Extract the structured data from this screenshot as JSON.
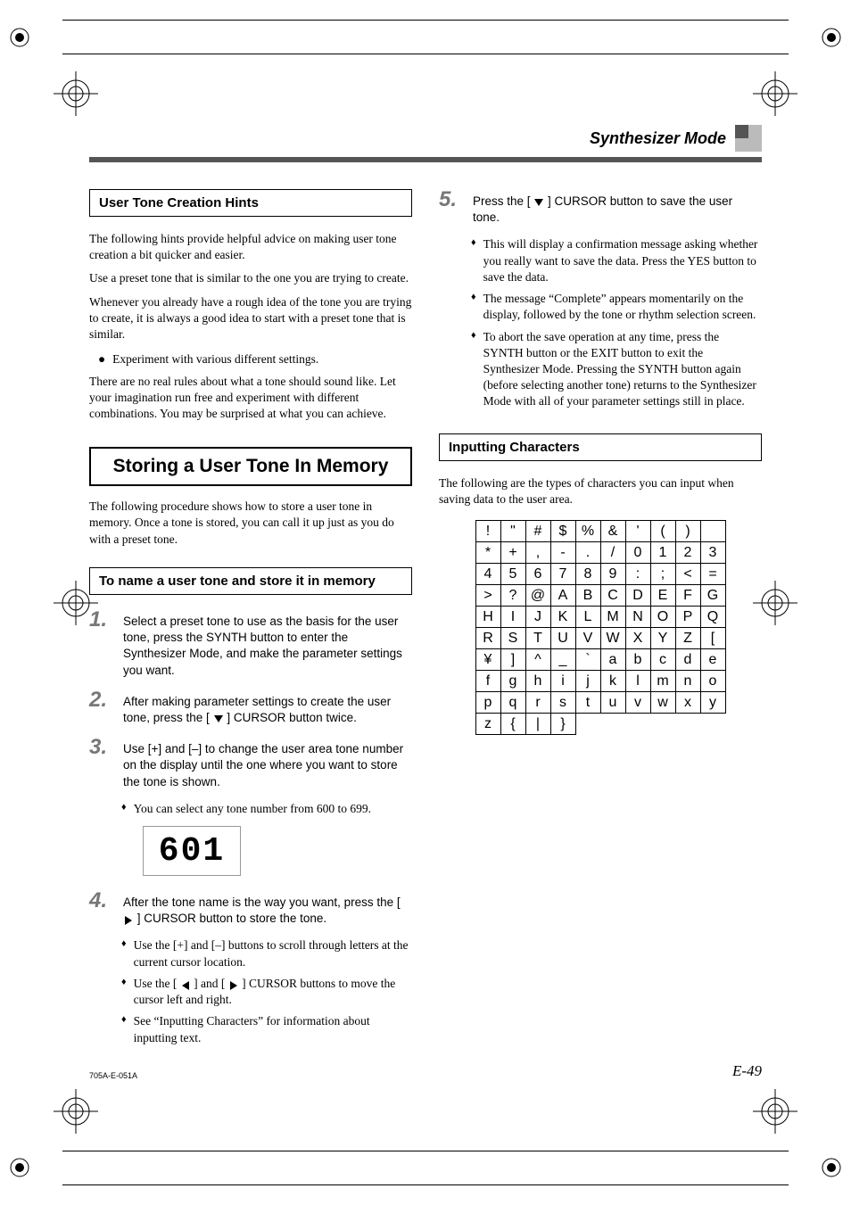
{
  "header": {
    "title": "Synthesizer Mode"
  },
  "left_col": {
    "hints_heading": "User Tone Creation Hints",
    "hints_p1": "The following hints provide helpful advice on making user tone creation a bit quicker and easier.",
    "hints_p2": "Use a preset tone that is similar to the one you are trying to create.",
    "hints_p3": "Whenever you already have a rough idea of the tone you are trying to create, it is always a good idea to start with a preset tone that is similar.",
    "hints_bullet": "Experiment with various different settings.",
    "hints_p4": "There are no real rules about what a tone should sound like. Let your imagination run free and experiment with different combinations. You may be surprised at what you can achieve.",
    "storing_heading": "Storing a User Tone In Memory",
    "storing_intro": "The following procedure shows how to store a user tone in memory. Once a tone is stored, you can call it up just as you do with a preset tone.",
    "naming_heading": "To name a user tone and store it in memory",
    "step1": "Select a preset tone to use as the basis for the user tone, press the SYNTH button to enter the Synthesizer Mode, and make the parameter settings you want.",
    "step2_a": "After making parameter settings to create the user tone, press the [ ",
    "step2_b": " ] CURSOR button twice.",
    "step3": "Use [+] and [–] to change the user area tone number on the display until the one where you want to store the tone is shown.",
    "step3_sub": "You can select any tone number from 600 to 699.",
    "lcd_value": "601",
    "step4_a": "After the tone name is the way you want, press the [ ",
    "step4_b": " ] CURSOR button to store the tone.",
    "step4_sub1": "Use the [+] and [–] buttons to scroll through letters at the current cursor location.",
    "step4_sub2_a": "Use the [ ",
    "step4_sub2_b": " ] and [ ",
    "step4_sub2_c": " ] CURSOR buttons to move the cursor left and right.",
    "step4_sub3": "See “Inputting Characters” for information about inputting text."
  },
  "right_col": {
    "step5_a": "Press the [ ",
    "step5_b": " ] CURSOR button to save the user tone.",
    "step5_sub1": "This will display a confirmation message asking whether you really want to save the data. Press the YES button to save the data.",
    "step5_sub2": "The message “Complete” appears momentarily on the display, followed by the tone or rhythm selection screen.",
    "step5_sub3": "To abort the save operation at any time, press the SYNTH button or the EXIT  button to exit the Synthesizer Mode. Pressing the SYNTH button again (before selecting another tone) returns to the Synthesizer Mode with all of your parameter settings still in place.",
    "input_heading": "Inputting Characters",
    "input_intro": "The following are the types of characters you can input when saving data to the user area.",
    "char_rows": [
      [
        "!",
        "\"",
        "#",
        "$",
        "%",
        "&",
        "'",
        "(",
        ")",
        " "
      ],
      [
        "*",
        "+",
        ",",
        "-",
        ".",
        "/",
        "0",
        "1",
        "2",
        "3"
      ],
      [
        "4",
        "5",
        "6",
        "7",
        "8",
        "9",
        ":",
        ";",
        "<",
        "="
      ],
      [
        ">",
        "?",
        "@",
        "A",
        "B",
        "C",
        "D",
        "E",
        "F",
        "G"
      ],
      [
        "H",
        "I",
        "J",
        "K",
        "L",
        "M",
        "N",
        "O",
        "P",
        "Q"
      ],
      [
        "R",
        "S",
        "T",
        "U",
        "V",
        "W",
        "X",
        "Y",
        "Z",
        "["
      ],
      [
        "¥",
        "]",
        "^",
        "_",
        "`",
        "a",
        "b",
        "c",
        "d",
        "e"
      ],
      [
        "f",
        "g",
        "h",
        "i",
        "j",
        "k",
        "l",
        "m",
        "n",
        "o"
      ],
      [
        "p",
        "q",
        "r",
        "s",
        "t",
        "u",
        "v",
        "w",
        "x",
        "y"
      ],
      [
        "z",
        "{",
        "|",
        "}",
        "",
        "",
        "",
        "",
        "",
        ""
      ]
    ]
  },
  "footer": {
    "code": "705A-E-051A",
    "page": "E-49"
  },
  "steps": {
    "n1": "1.",
    "n2": "2.",
    "n3": "3.",
    "n4": "4.",
    "n5": "5."
  },
  "glyphs": {
    "dot": "●",
    "diamond": "♦"
  }
}
